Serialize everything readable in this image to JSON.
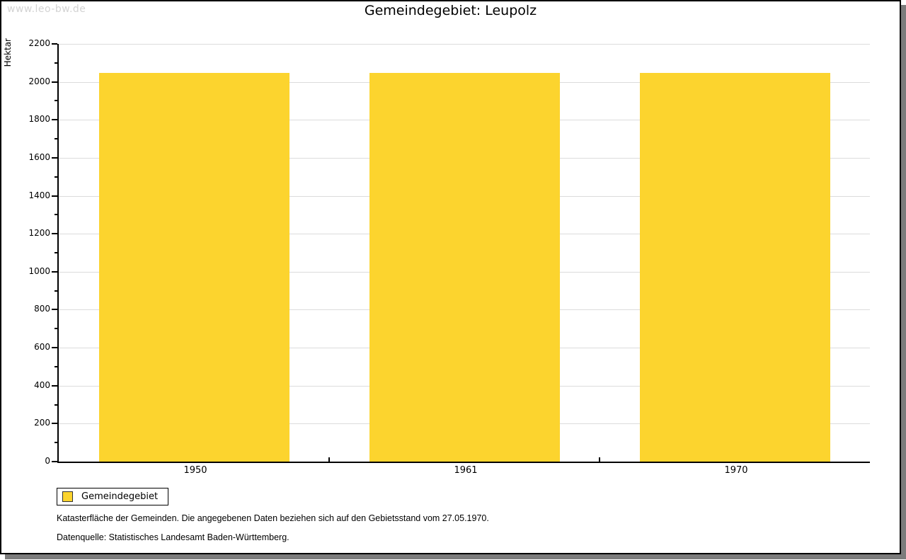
{
  "watermark": "www.leo-bw.de",
  "title": "Gemeindegebiet: Leupolz",
  "chart_data": {
    "type": "bar",
    "title": "Gemeindegebiet: Leupolz",
    "ylabel": "Hektar",
    "xlabel": "",
    "categories": [
      "1950",
      "1961",
      "1970"
    ],
    "series": [
      {
        "name": "Gemeindegebiet",
        "values": [
          2046,
          2046,
          2046
        ]
      }
    ],
    "ylim": [
      0,
      2200
    ],
    "ytick_step": 200,
    "ytick_minor_step": 100,
    "grid": true,
    "legend_position": "bottom-left",
    "bar_color": "#FCD42E"
  },
  "legend": {
    "label": "Gemeindegebiet",
    "swatch_color": "#FCD42E"
  },
  "footnotes": [
    "Katasterfläche der Gemeinden. Die angegebenen Daten beziehen sich auf den Gebietsstand vom 27.05.1970.",
    "Datenquelle: Statistisches Landesamt Baden-Württemberg."
  ],
  "colors": {
    "bar": "#FCD42E",
    "gridline": "#DCDCDC",
    "axis": "#000000",
    "watermark": "#D3D3D3",
    "shadow": "#7C7C7C",
    "background": "#FFFFFF"
  }
}
